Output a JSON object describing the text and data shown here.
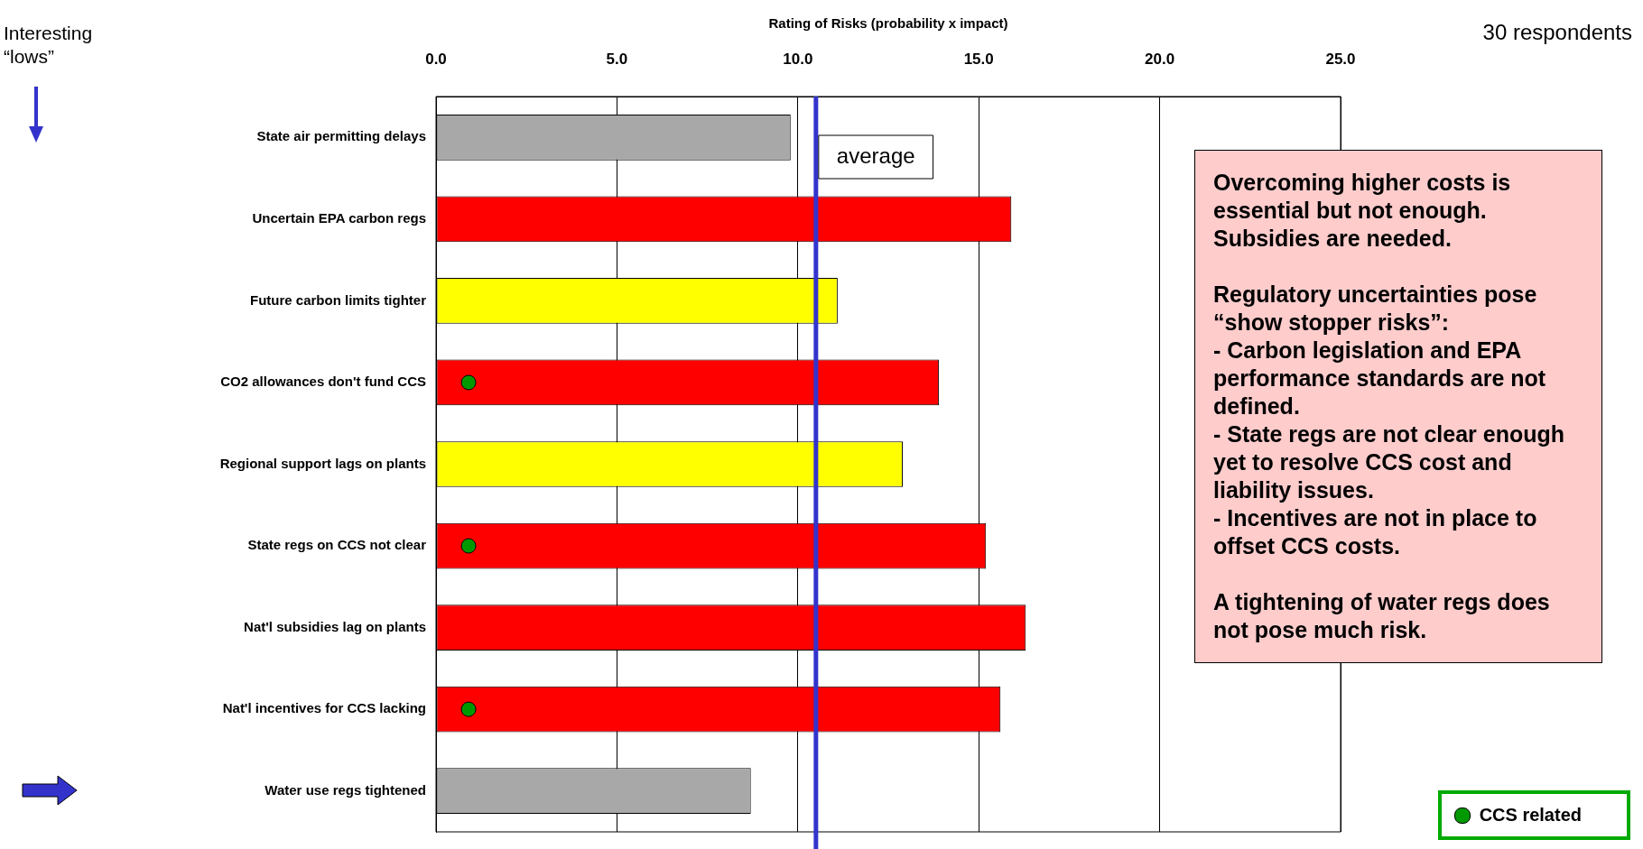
{
  "chart_data": {
    "type": "bar",
    "orientation": "horizontal",
    "xlabel": "Rating of Risks (probability x impact)",
    "categories": [
      "State air permitting delays",
      "Uncertain EPA carbon regs",
      "Future carbon limits tighter",
      "CO2 allowances don't fund CCS",
      "Regional support lags on plants",
      "State regs on CCS not clear",
      "Nat'l subsidies lag on plants",
      "Nat'l incentives for CCS lacking",
      "Water use regs tightened"
    ],
    "series": [
      {
        "values": [
          9.8,
          15.9,
          11.1,
          13.9,
          12.9,
          15.2,
          16.3,
          15.6,
          8.7
        ],
        "colors": [
          "#a8a8a8",
          "#ff0000",
          "#ffff00",
          "#ff0000",
          "#ffff00",
          "#ff0000",
          "#ff0000",
          "#ff0000",
          "#a8a8a8"
        ]
      },
      {
        "type": "scatter",
        "name": "CCS related",
        "color": "#009900",
        "x": [
          "CO2 allowances don't fund CCS",
          "State regs on CCS not clear",
          "Nat'l incentives for CCS lacking"
        ],
        "values": [
          0.9,
          0.9,
          0.9
        ]
      }
    ],
    "xlim": [
      0,
      25
    ],
    "xticks": [
      {
        "value": 0,
        "label": "0.0"
      },
      {
        "value": 5,
        "label": "5.0"
      },
      {
        "value": 10,
        "label": "10.0"
      },
      {
        "value": 15,
        "label": "15.0"
      },
      {
        "value": 20,
        "label": "20.0"
      },
      {
        "value": 25,
        "label": "25.0"
      }
    ],
    "grid": "x",
    "legend": "bottom right",
    "ref_lines": [
      {
        "axis": "x",
        "value": 10.5,
        "label": "average",
        "color": "#3333cc"
      }
    ],
    "annotations": [
      "Interesting “lows”",
      "30 respondents",
      "Overcoming higher costs is essential but not enough. Subsidies are needed.\n\nRegulatory uncertainties pose “show stopper risks”:\n- Carbon legislation and EPA performance standards are not defined.\n- State regs are not clear enough yet to resolve CCS cost and liability issues.\n- Incentives are not in place to offset CCS costs.\n\nA tightening of water regs does not pose much risk."
    ]
  }
}
